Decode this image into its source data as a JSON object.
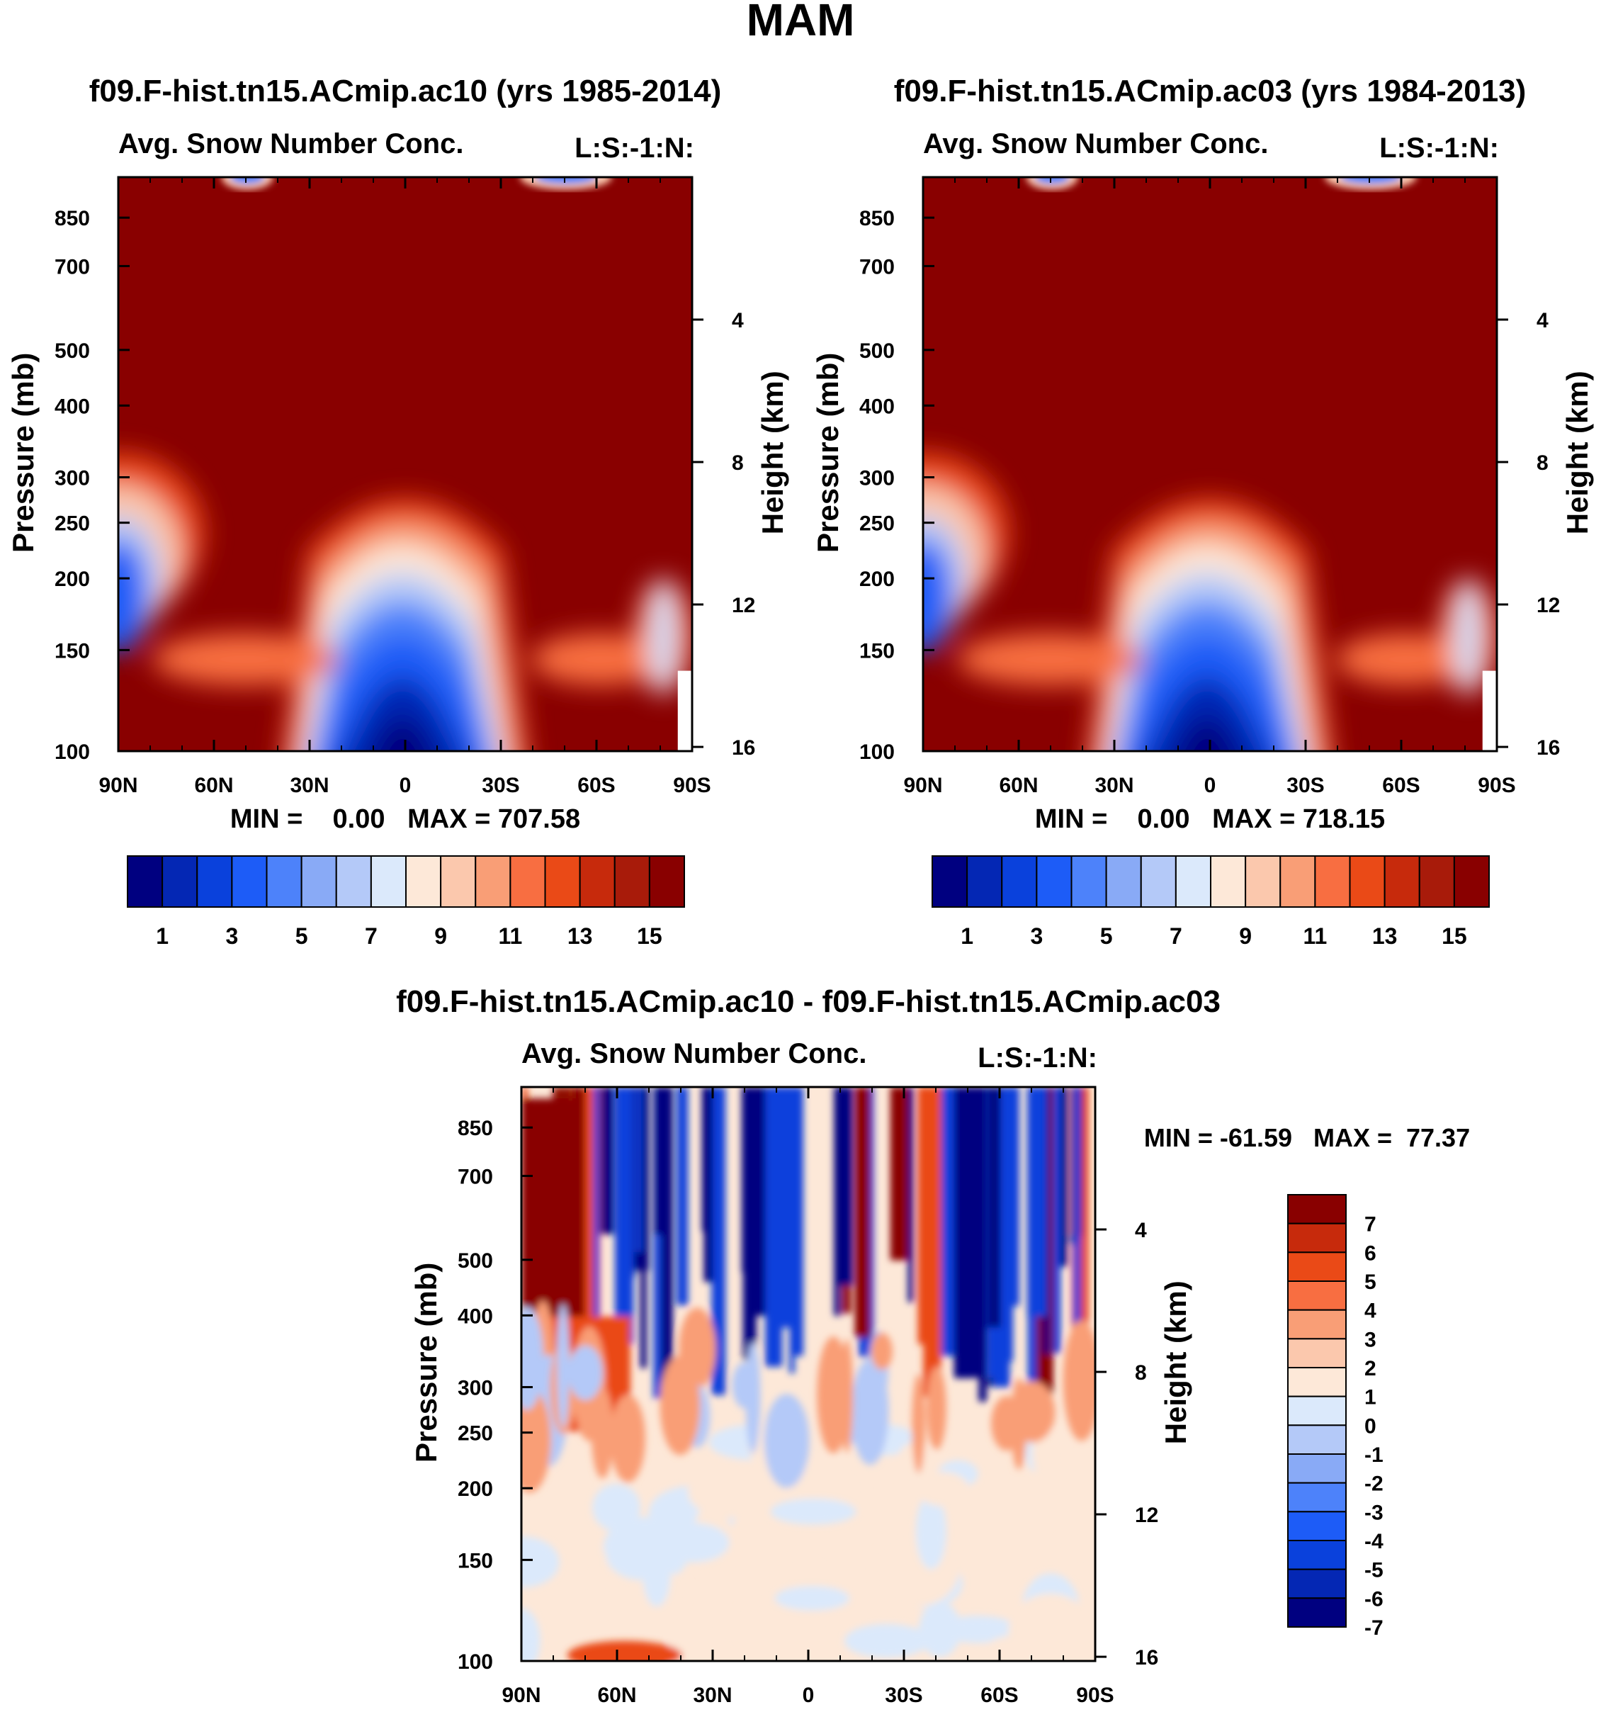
{
  "figure_title": "MAM",
  "colors": {
    "abs_fill": [
      "#000080",
      "#0427b4",
      "#0a41dc",
      "#1d5cf7",
      "#4d82fa",
      "#89aaf6",
      "#b4c9f8",
      "#dbe9fb",
      "#fde8d8",
      "#fbc8ad",
      "#f99e76",
      "#f86e41",
      "#ea4a17",
      "#c72a0c",
      "#a81b0a",
      "#890000"
    ],
    "diff_fill": [
      "#000080",
      "#0427b4",
      "#0a41dc",
      "#1d5cf7",
      "#4d82fa",
      "#89aaf6",
      "#b4c9f8",
      "#dbe9fb",
      "#fde8d8",
      "#fbc8ad",
      "#f99e76",
      "#f86e41",
      "#ea4a17",
      "#c72a0c",
      "#890000"
    ]
  },
  "chart_data": [
    {
      "type": "heatmap",
      "panel": "left",
      "title": "f09.F-hist.tn15.ACmip.ac10 (yrs 1985-2014)",
      "subtitle_left": "Avg. Snow Number Conc.",
      "subtitle_right": "L:S:-1:N:",
      "xlabel": "",
      "ylabel": "Pressure (mb)",
      "ylabel_right": "Height (km)",
      "x_ticks": [
        "90N",
        "60N",
        "30N",
        "0",
        "30S",
        "60S",
        "90S"
      ],
      "y_ticks": [
        "100",
        "150",
        "200",
        "250",
        "300",
        "400",
        "500",
        "700",
        "850"
      ],
      "y_ticks_right": [
        "16",
        "12",
        "8",
        "4"
      ],
      "ylim": [
        1000,
        100
      ],
      "stats": "MIN =    0.00   MAX = 707.58",
      "colorbar_labels": [
        "1",
        "3",
        "5",
        "7",
        "9",
        "11",
        "13",
        "15"
      ]
    },
    {
      "type": "heatmap",
      "panel": "right",
      "title": "f09.F-hist.tn15.ACmip.ac03 (yrs 1984-2013)",
      "subtitle_left": "Avg. Snow Number Conc.",
      "subtitle_right": "L:S:-1:N:",
      "xlabel": "",
      "ylabel": "Pressure (mb)",
      "ylabel_right": "Height (km)",
      "x_ticks": [
        "90N",
        "60N",
        "30N",
        "0",
        "30S",
        "60S",
        "90S"
      ],
      "y_ticks": [
        "100",
        "150",
        "200",
        "250",
        "300",
        "400",
        "500",
        "700",
        "850"
      ],
      "y_ticks_right": [
        "16",
        "12",
        "8",
        "4"
      ],
      "ylim": [
        1000,
        100
      ],
      "stats": "MIN =    0.00   MAX = 718.15",
      "colorbar_labels": [
        "1",
        "3",
        "5",
        "7",
        "9",
        "11",
        "13",
        "15"
      ]
    },
    {
      "type": "heatmap",
      "panel": "difference",
      "title": "f09.F-hist.tn15.ACmip.ac10 - f09.F-hist.tn15.ACmip.ac03",
      "subtitle_left": "Avg. Snow Number Conc.",
      "subtitle_right": "L:S:-1:N:",
      "xlabel": "",
      "ylabel": "Pressure (mb)",
      "ylabel_right": "Height (km)",
      "x_ticks": [
        "90N",
        "60N",
        "30N",
        "0",
        "30S",
        "60S",
        "90S"
      ],
      "y_ticks": [
        "100",
        "150",
        "200",
        "250",
        "300",
        "400",
        "500",
        "700",
        "850"
      ],
      "y_ticks_right": [
        "16",
        "12",
        "8",
        "4"
      ],
      "ylim": [
        1000,
        100
      ],
      "stats": "MIN = -61.59   MAX =  77.37",
      "colorbar_labels": [
        "7",
        "6",
        "5",
        "4",
        "3",
        "2",
        "1",
        "0",
        "-1",
        "-2",
        "-3",
        "-4",
        "-5",
        "-6",
        "-7"
      ]
    }
  ]
}
